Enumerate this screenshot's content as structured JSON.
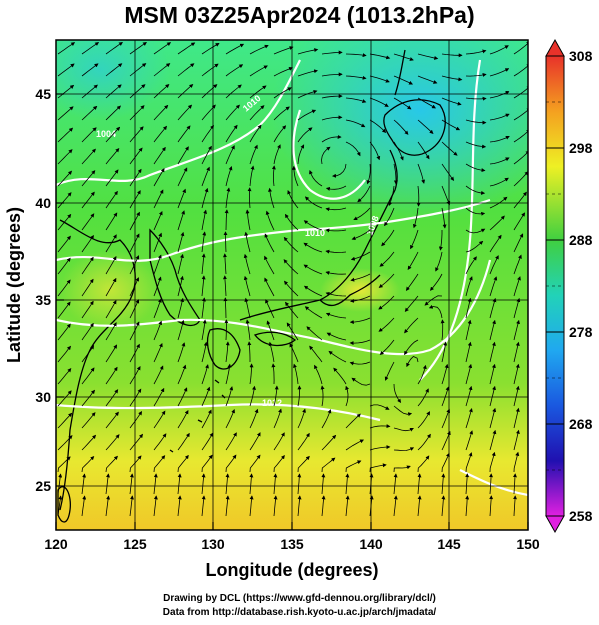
{
  "title": "MSM 03Z25Apr2024 (1013.2hPa)",
  "x_axis": {
    "label": "Longitude (degrees)",
    "ticks": [
      "120",
      "125",
      "130",
      "135",
      "140",
      "145",
      "150"
    ]
  },
  "y_axis": {
    "label": "Latitude  (degrees)",
    "ticks": [
      "25",
      "30",
      "35",
      "40",
      "45"
    ]
  },
  "colorbar": {
    "ticks": [
      "308",
      "298",
      "288",
      "278",
      "268",
      "258"
    ]
  },
  "credits": {
    "line1": "Drawing by DCL (https://www.gfd-dennou.org/library/dcl/)",
    "line2": "Data from http://database.rish.kyoto-u.ac.jp/arch/jmadata/"
  },
  "isobar_labels": [
    "1004",
    "1010",
    "1010",
    "1012",
    "1008"
  ],
  "chart_data": {
    "type": "heatmap",
    "title": "MSM 03Z25Apr2024 (1013.2hPa)",
    "xlabel": "Longitude (degrees)",
    "ylabel": "Latitude  (degrees)",
    "xlim": [
      120,
      150
    ],
    "ylim": [
      22.4,
      47.6
    ],
    "colorbar_range": [
      258,
      308
    ],
    "colorbar_ticks": [
      308,
      298,
      288,
      278,
      268,
      258
    ],
    "layers": [
      "temperature shading",
      "wind streamlines",
      "isobars (white)",
      "coastlines"
    ],
    "grid": true
  }
}
